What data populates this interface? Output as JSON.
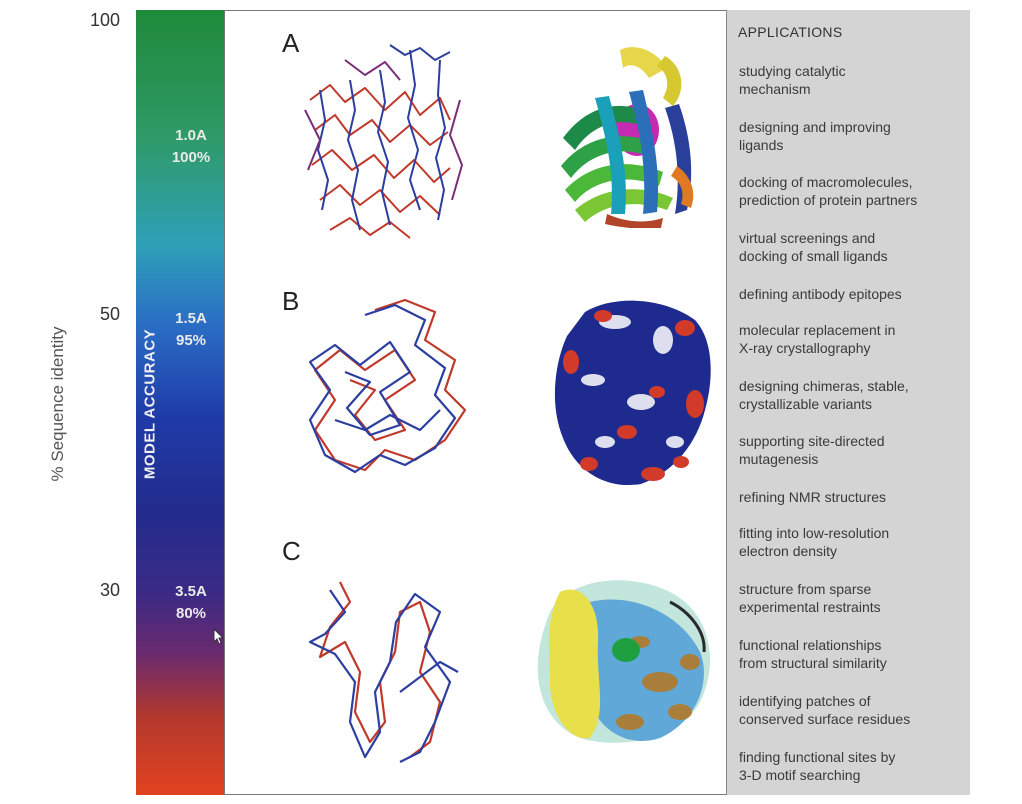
{
  "y_axis": {
    "label": "% Sequence identity",
    "ticks": [
      {
        "label": "100",
        "level": 100
      },
      {
        "label": "50",
        "level": 50
      },
      {
        "label": "30",
        "level": 30
      }
    ]
  },
  "bar": {
    "title": "MODEL ACCURACY",
    "levels": [
      {
        "resolution": "1.0A",
        "percent": "100%"
      },
      {
        "resolution": "1.5A",
        "percent": "95%"
      },
      {
        "resolution": "3.5A",
        "percent": "80%"
      }
    ]
  },
  "sections": [
    "A",
    "B",
    "C"
  ],
  "applications": {
    "title": "APPLICATIONS",
    "items": [
      "studying catalytic mechanism",
      "designing and improving ligands",
      "docking of macromolecules, prediction of protein partners",
      "virtual screenings and docking of small ligands",
      "defining antibody epitopes",
      "molecular replacement in X-ray crystallography",
      "designing chimeras, stable, crystallizable variants",
      "supporting site-directed mutagenesis",
      "refining NMR structures",
      "fitting into low-resolution electron density",
      "structure from sparse experimental restraints",
      "functional relationships from structural similarity",
      "identifying patches of conserved surface residues",
      "finding functional sites by 3-D motif searching"
    ],
    "lines": [
      [
        "studying catalytic",
        "mechanism"
      ],
      [
        "designing and improving",
        "ligands"
      ],
      [
        "docking of macromolecules,",
        "prediction of protein partners"
      ],
      [
        "virtual screenings and",
        "docking of small ligands"
      ],
      [
        "defining antibody epitopes"
      ],
      [
        "molecular replacement in",
        "X-ray crystallography"
      ],
      [
        "designing chimeras, stable,",
        "crystallizable variants"
      ],
      [
        "supporting site-directed",
        "mutagenesis"
      ],
      [
        "refining NMR structures"
      ],
      [
        "fitting into low-resolution",
        "electron density"
      ],
      [
        "structure from sparse",
        "experimental restraints"
      ],
      [
        "functional relationships",
        "from structural similarity"
      ],
      [
        "identifying patches of",
        "conserved surface residues"
      ],
      [
        "finding functional sites by",
        "3-D motif searching"
      ]
    ]
  },
  "colors": {
    "red_trace": "#c0392b",
    "blue_trace": "#2c3fa0",
    "panel_gray": "#d4d4d4"
  }
}
